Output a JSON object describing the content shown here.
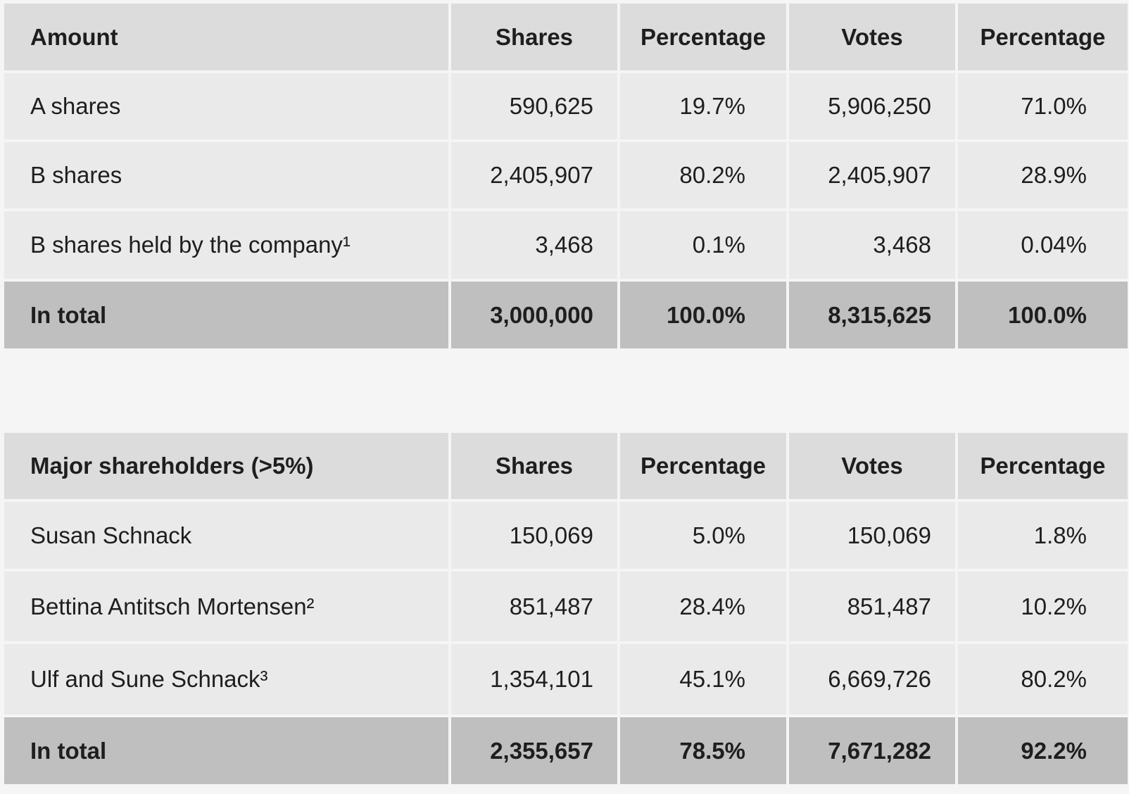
{
  "amount_table": {
    "headers": [
      "Amount",
      "Shares",
      "Percentage",
      "Votes",
      "Percentage"
    ],
    "rows": [
      [
        "A shares",
        "590,625",
        "19.7%",
        "5,906,250",
        "71.0%"
      ],
      [
        "B shares",
        "2,405,907",
        "80.2%",
        "2,405,907",
        "28.9%"
      ],
      [
        "B shares held by the company¹",
        "3,468",
        "0.1%",
        "3,468",
        "0.04%"
      ]
    ],
    "total": [
      "In total",
      "3,000,000",
      "100.0%",
      "8,315,625",
      "100.0%"
    ]
  },
  "major_table": {
    "headers": [
      "Major shareholders (>5%)",
      "Shares",
      "Percentage",
      "Votes",
      "Percentage"
    ],
    "rows": [
      [
        "Susan Schnack",
        "150,069",
        "5.0%",
        "150,069",
        "1.8%"
      ],
      [
        "Bettina Antitsch Mortensen²",
        "851,487",
        "28.4%",
        "851,487",
        "10.2%"
      ],
      [
        "Ulf and Sune Schnack³",
        "1,354,101",
        "45.1%",
        "6,669,726",
        "80.2%"
      ]
    ],
    "total": [
      "In total",
      "2,355,657",
      "78.5%",
      "7,671,282",
      "92.2%"
    ]
  }
}
